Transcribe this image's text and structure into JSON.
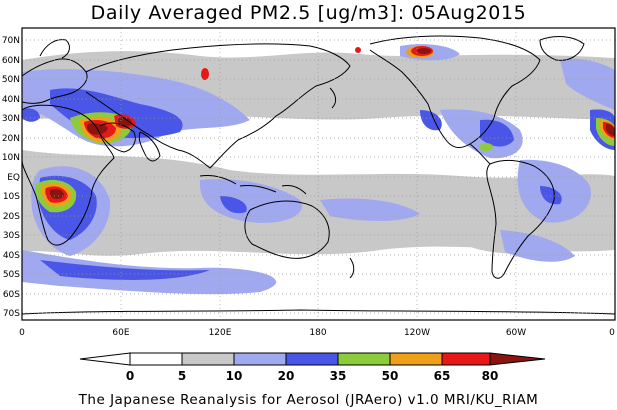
{
  "title": "Daily Averaged PM2.5 [ug/m3]: 05Aug2015",
  "footer": "The Japanese Reanalysis for Aerosol (JRAero) v1.0 MRI/KU_RIAM",
  "lat_labels": [
    "70N",
    "60N",
    "50N",
    "40N",
    "30N",
    "20N",
    "10N",
    "EQ",
    "10S",
    "20S",
    "30S",
    "40S",
    "50S",
    "60S",
    "70S"
  ],
  "lon_labels": [
    "0",
    "60E",
    "120E",
    "180",
    "120W",
    "60W",
    "0"
  ],
  "colorbar": {
    "levels": [
      "0",
      "5",
      "10",
      "20",
      "35",
      "50",
      "65",
      "80"
    ],
    "colors": [
      "#ffffff",
      "#c8c8c8",
      "#a0a8f0",
      "#4a56e8",
      "#8ccc3a",
      "#f0a018",
      "#e81818",
      "#8c1410"
    ]
  },
  "colors": {
    "land_outline": "#000000",
    "grid": "#9a9a9a"
  }
}
